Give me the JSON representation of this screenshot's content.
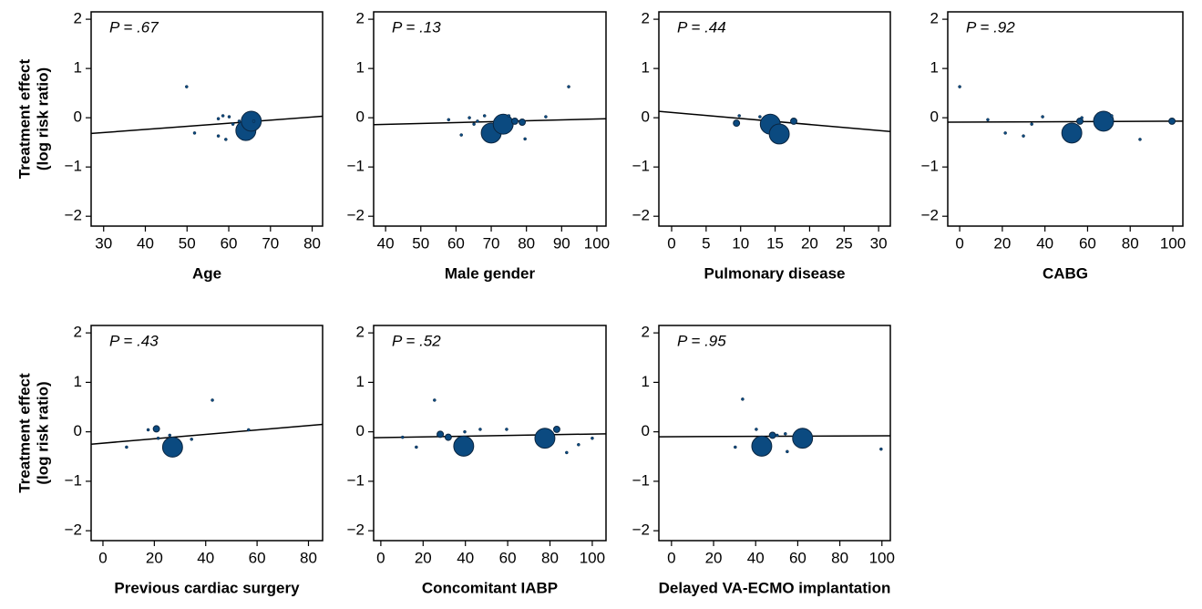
{
  "chart_data": [
    {
      "type": "scatter",
      "xlabel": "Age",
      "annotation": "P = .67",
      "ylabel": [
        "Treatment effect",
        "(log risk ratio)"
      ],
      "xlim": [
        27,
        82.5
      ],
      "xticks": [
        30,
        40,
        50,
        60,
        70,
        80
      ],
      "ylim": [
        -2.2,
        2.15
      ],
      "yticks": [
        {
          "value": -2,
          "label": "−2"
        },
        {
          "value": -1,
          "label": "−1"
        },
        0,
        1,
        2
      ],
      "color": "#0b4a80",
      "x": [
        49.9,
        51.8,
        57.5,
        58.6,
        57.5,
        59.3,
        60.1,
        61,
        62.5,
        64.1,
        65.4,
        66
      ],
      "y": [
        0.63,
        -0.31,
        -0.02,
        0.04,
        -0.37,
        -0.44,
        0.02,
        -0.13,
        -0.07,
        -0.26,
        -0.07,
        -0.07
      ],
      "sizes": [
        0.6,
        0.6,
        0.6,
        0.6,
        0.6,
        0.6,
        0.6,
        0.6,
        0.6,
        30,
        30,
        0.6
      ],
      "fit": {
        "x": [
          27,
          82.5
        ],
        "y": [
          -0.32,
          0.03
        ]
      }
    },
    {
      "type": "scatter",
      "xlabel": "Male gender",
      "annotation": "P = .13",
      "xlim": [
        36.6,
        102.6
      ],
      "xticks": [
        40,
        50,
        60,
        70,
        80,
        90,
        100
      ],
      "ylim": [
        -2.2,
        2.15
      ],
      "yticks": [
        {
          "value": -2,
          "label": "−2"
        },
        {
          "value": -1,
          "label": "−1"
        },
        0,
        1,
        2
      ],
      "color": "#0b4a80",
      "x": [
        57.9,
        61.5,
        63.8,
        65.1,
        66.1,
        68.1,
        70,
        73.4,
        76.7,
        78.8,
        75,
        79.6,
        85.5,
        92
      ],
      "y": [
        -0.04,
        -0.35,
        0,
        -0.13,
        -0.07,
        0.04,
        -0.31,
        -0.13,
        -0.07,
        -0.09,
        0.04,
        -0.43,
        0.02,
        0.63
      ],
      "sizes": [
        0.6,
        0.6,
        0.6,
        0.6,
        0.6,
        0.6,
        30,
        30,
        3,
        3,
        0.6,
        0.6,
        0.6,
        0.6
      ],
      "fit": {
        "x": [
          36.6,
          102.6
        ],
        "y": [
          -0.14,
          -0.02
        ]
      }
    },
    {
      "type": "scatter",
      "xlabel": "Pulmonary disease",
      "annotation": "P = .44",
      "xlim": [
        -1.85,
        31.7
      ],
      "xticks": [
        0,
        5,
        10,
        15,
        20,
        25,
        30
      ],
      "ylim": [
        -2.2,
        2.15
      ],
      "yticks": [
        {
          "value": -2,
          "label": "−2"
        },
        {
          "value": -1,
          "label": "−1"
        },
        0,
        1,
        2
      ],
      "color": "#0b4a80",
      "x": [
        9.4,
        9.8,
        12.8,
        14.3,
        15.6,
        17.7
      ],
      "y": [
        -0.11,
        0.04,
        0.02,
        -0.13,
        -0.33,
        -0.07
      ],
      "sizes": [
        3,
        0.6,
        0.6,
        30,
        30,
        3
      ],
      "fit": {
        "x": [
          -1.85,
          31.7
        ],
        "y": [
          0.13,
          -0.28
        ]
      }
    },
    {
      "type": "scatter",
      "xlabel": "CABG",
      "annotation": "P = .92",
      "xlim": [
        -5.6,
        104.7
      ],
      "xticks": [
        0,
        20,
        40,
        60,
        80,
        100
      ],
      "ylim": [
        -2.2,
        2.15
      ],
      "yticks": [
        {
          "value": -2,
          "label": "−2"
        },
        {
          "value": -1,
          "label": "−1"
        },
        0,
        1,
        2
      ],
      "color": "#0b4a80",
      "x": [
        0,
        13.2,
        21.4,
        29.9,
        33.8,
        38.9,
        52.6,
        56.4,
        57.3,
        67.5,
        71.3,
        84.6,
        99.6
      ],
      "y": [
        0.63,
        -0.04,
        -0.31,
        -0.37,
        -0.13,
        0.02,
        -0.31,
        -0.07,
        0,
        -0.07,
        0.04,
        -0.44,
        -0.07
      ],
      "sizes": [
        0.6,
        0.6,
        0.6,
        0.6,
        0.6,
        0.6,
        30,
        3,
        0.6,
        30,
        0.6,
        0.6,
        3
      ],
      "fit": {
        "x": [
          -5.6,
          104.7
        ],
        "y": [
          -0.09,
          -0.07
        ]
      }
    },
    {
      "type": "scatter",
      "xlabel": "Previous cardiac surgery",
      "annotation": "P = .43",
      "ylabel": [
        "Treatment effect",
        "(log risk ratio)"
      ],
      "xlim": [
        -4.6,
        85.5
      ],
      "xticks": [
        0,
        20,
        40,
        60,
        80
      ],
      "ylim": [
        -2.2,
        2.15
      ],
      "yticks": [
        {
          "value": -2,
          "label": "−2"
        },
        {
          "value": -1,
          "label": "−1"
        },
        0,
        1,
        2
      ],
      "color": "#0b4a80",
      "x": [
        9.2,
        17.6,
        20.8,
        21.5,
        26,
        27.1,
        34.5,
        42.6,
        56.7
      ],
      "y": [
        -0.31,
        0.04,
        0.06,
        -0.13,
        -0.07,
        -0.31,
        -0.15,
        0.64,
        0.04
      ],
      "sizes": [
        0.6,
        0.6,
        3,
        0.6,
        0.6,
        30,
        0.6,
        0.6,
        0.6
      ],
      "fit": {
        "x": [
          -4.6,
          85.5
        ],
        "y": [
          -0.25,
          0.15
        ]
      }
    },
    {
      "type": "scatter",
      "xlabel": "Concomitant IABP",
      "annotation": "P = .52",
      "xlim": [
        -3.4,
        106.5
      ],
      "xticks": [
        0,
        20,
        40,
        60,
        80,
        100
      ],
      "ylim": [
        -2.2,
        2.15
      ],
      "yticks": [
        {
          "value": -2,
          "label": "−2"
        },
        {
          "value": -1,
          "label": "−1"
        },
        0,
        1,
        2
      ],
      "color": "#0b4a80",
      "x": [
        10.3,
        16.8,
        25.4,
        27.2,
        28.1,
        31.9,
        39.7,
        39.2,
        47,
        59.5,
        77.6,
        83.2,
        87.9,
        93.5,
        100
      ],
      "y": [
        -0.11,
        -0.31,
        0.64,
        -0.07,
        -0.05,
        -0.11,
        0,
        -0.29,
        0.05,
        0.05,
        -0.13,
        0.05,
        -0.42,
        -0.26,
        -0.13
      ],
      "sizes": [
        0.6,
        0.6,
        0.6,
        0.6,
        3,
        3,
        0.6,
        30,
        0.6,
        0.6,
        30,
        3,
        0.6,
        0.6,
        0.6
      ],
      "fit": {
        "x": [
          -3.4,
          106.5
        ],
        "y": [
          -0.12,
          -0.04
        ]
      }
    },
    {
      "type": "scatter",
      "xlabel": "Delayed VA-ECMO implantation",
      "annotation": "P = .95",
      "xlim": [
        -6,
        104
      ],
      "xticks": [
        0,
        20,
        40,
        60,
        80,
        100
      ],
      "ylim": [
        -2.2,
        2.15
      ],
      "yticks": [
        {
          "value": -2,
          "label": "−2"
        },
        {
          "value": -1,
          "label": "−1"
        },
        0,
        1,
        2
      ],
      "color": "#0b4a80",
      "x": [
        30.3,
        33.8,
        40.3,
        42.9,
        48,
        50.2,
        54.1,
        55,
        62.3,
        99.6
      ],
      "y": [
        -0.31,
        0.66,
        0.05,
        -0.29,
        -0.07,
        -0.07,
        -0.04,
        -0.4,
        -0.13,
        -0.35
      ],
      "sizes": [
        0.6,
        0.6,
        0.6,
        30,
        3,
        0.6,
        0.6,
        0.6,
        30,
        0.6
      ],
      "fit": {
        "x": [
          -6,
          104
        ],
        "y": [
          -0.1,
          -0.08
        ]
      }
    }
  ]
}
